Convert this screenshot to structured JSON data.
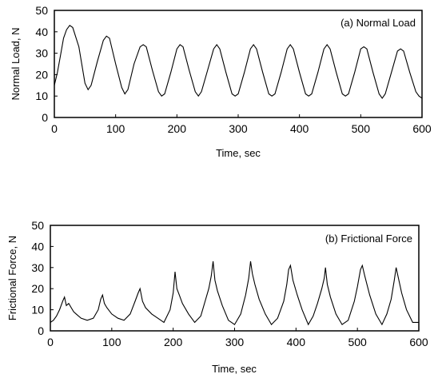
{
  "chart_data": [
    {
      "type": "line",
      "panel_label": "(a) Normal Load",
      "xlabel": "Time, sec",
      "ylabel": "Normal Load, N",
      "xlim": [
        0,
        600
      ],
      "ylim": [
        0,
        50
      ],
      "xticks": [
        0,
        100,
        200,
        300,
        400,
        500,
        600
      ],
      "yticks": [
        0,
        10,
        20,
        30,
        40,
        50
      ],
      "grid": false,
      "legend": "none",
      "color": "#000000",
      "series": [
        {
          "x": [
            0,
            5,
            10,
            15,
            20,
            25,
            30,
            40,
            50,
            55,
            60,
            70,
            80,
            85,
            90,
            100,
            110,
            115,
            120,
            130,
            140,
            145,
            150,
            160,
            170,
            175,
            180,
            190,
            200,
            205,
            210,
            220,
            230,
            235,
            240,
            250,
            260,
            265,
            270,
            280,
            290,
            295,
            300,
            310,
            320,
            325,
            330,
            340,
            350,
            355,
            360,
            370,
            380,
            385,
            390,
            400,
            410,
            415,
            420,
            430,
            440,
            445,
            450,
            460,
            470,
            475,
            480,
            490,
            500,
            505,
            510,
            520,
            530,
            535,
            540,
            550,
            560,
            565,
            570,
            580,
            590,
            595,
            600
          ],
          "values": [
            15,
            21,
            29,
            37,
            41,
            43,
            42,
            33,
            16,
            13,
            15,
            26,
            36,
            38,
            37,
            25,
            14,
            11,
            13,
            25,
            33,
            34,
            33,
            22,
            12,
            10,
            11,
            21,
            32,
            34,
            33,
            22,
            12,
            10,
            12,
            22,
            32,
            34,
            32,
            21,
            11,
            10,
            11,
            21,
            32,
            34,
            32,
            21,
            11,
            10,
            11,
            21,
            32,
            34,
            32,
            21,
            11,
            10,
            11,
            21,
            32,
            34,
            32,
            21,
            11,
            10,
            11,
            21,
            32,
            33,
            32,
            21,
            11,
            9,
            11,
            21,
            31,
            32,
            31,
            21,
            12,
            10,
            9
          ]
        }
      ]
    },
    {
      "type": "line",
      "panel_label": "(b) Frictional Force",
      "xlabel": "Time, sec",
      "ylabel": "Frictional Force, N",
      "xlim": [
        0,
        600
      ],
      "ylim": [
        0,
        50
      ],
      "xticks": [
        0,
        100,
        200,
        300,
        400,
        500,
        600
      ],
      "yticks": [
        0,
        10,
        20,
        30,
        40,
        50
      ],
      "grid": false,
      "legend": "none",
      "color": "#000000",
      "series": [
        {
          "x": [
            0,
            5,
            10,
            15,
            20,
            23,
            26,
            30,
            34,
            38,
            42,
            50,
            60,
            70,
            78,
            82,
            85,
            88,
            92,
            100,
            110,
            120,
            130,
            138,
            143,
            146,
            150,
            155,
            165,
            175,
            185,
            195,
            200,
            203,
            206,
            210,
            215,
            225,
            235,
            245,
            252,
            258,
            262,
            265,
            268,
            272,
            280,
            290,
            300,
            310,
            318,
            323,
            326,
            329,
            333,
            340,
            350,
            360,
            370,
            380,
            385,
            388,
            391,
            395,
            402,
            410,
            420,
            428,
            435,
            442,
            446,
            448,
            451,
            456,
            465,
            475,
            485,
            495,
            500,
            505,
            508,
            512,
            520,
            530,
            540,
            548,
            555,
            560,
            563,
            566,
            572,
            580,
            590,
            600
          ],
          "values": [
            4,
            5,
            7,
            10,
            14,
            16,
            12,
            13,
            11,
            9,
            8,
            6,
            5,
            6,
            10,
            15,
            17,
            13,
            11,
            8,
            6,
            5,
            8,
            14,
            18,
            20,
            14,
            11,
            8,
            6,
            4,
            10,
            18,
            28,
            20,
            17,
            13,
            8,
            4,
            7,
            14,
            20,
            26,
            33,
            24,
            19,
            12,
            5,
            3,
            8,
            17,
            25,
            33,
            27,
            22,
            15,
            8,
            3,
            6,
            14,
            22,
            29,
            31,
            24,
            17,
            10,
            3,
            7,
            13,
            20,
            25,
            30,
            22,
            16,
            8,
            3,
            5,
            14,
            21,
            29,
            31,
            26,
            17,
            8,
            3,
            8,
            15,
            24,
            30,
            26,
            18,
            10,
            4,
            4
          ]
        }
      ]
    }
  ]
}
